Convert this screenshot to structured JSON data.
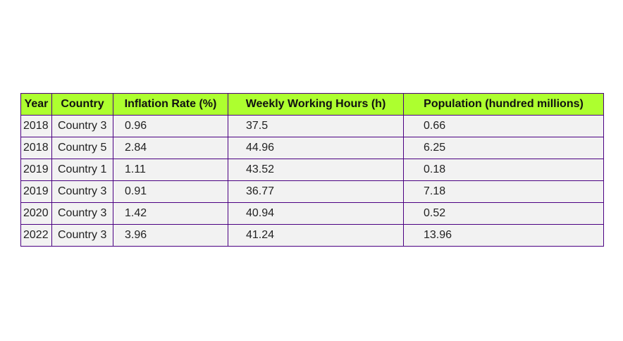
{
  "chart_data": {
    "type": "table",
    "columns": [
      "Year",
      "Country",
      "Inflation Rate (%)",
      "Weekly Working Hours (h)",
      "Population (hundred millions)"
    ],
    "rows": [
      [
        "2018",
        "Country 3",
        "0.96",
        "37.5",
        "0.66"
      ],
      [
        "2018",
        "Country 5",
        "2.84",
        "44.96",
        "6.25"
      ],
      [
        "2019",
        "Country 1",
        "1.11",
        "43.52",
        "0.18"
      ],
      [
        "2019",
        "Country 3",
        "0.91",
        "36.77",
        "7.18"
      ],
      [
        "2020",
        "Country 3",
        "1.42",
        "40.94",
        "0.52"
      ],
      [
        "2022",
        "Country 3",
        "3.96",
        "41.24",
        "13.96"
      ]
    ],
    "colors": {
      "header_bg": "#adff2f",
      "cell_bg": "#f2f2f2",
      "border": "#4b0082"
    }
  }
}
